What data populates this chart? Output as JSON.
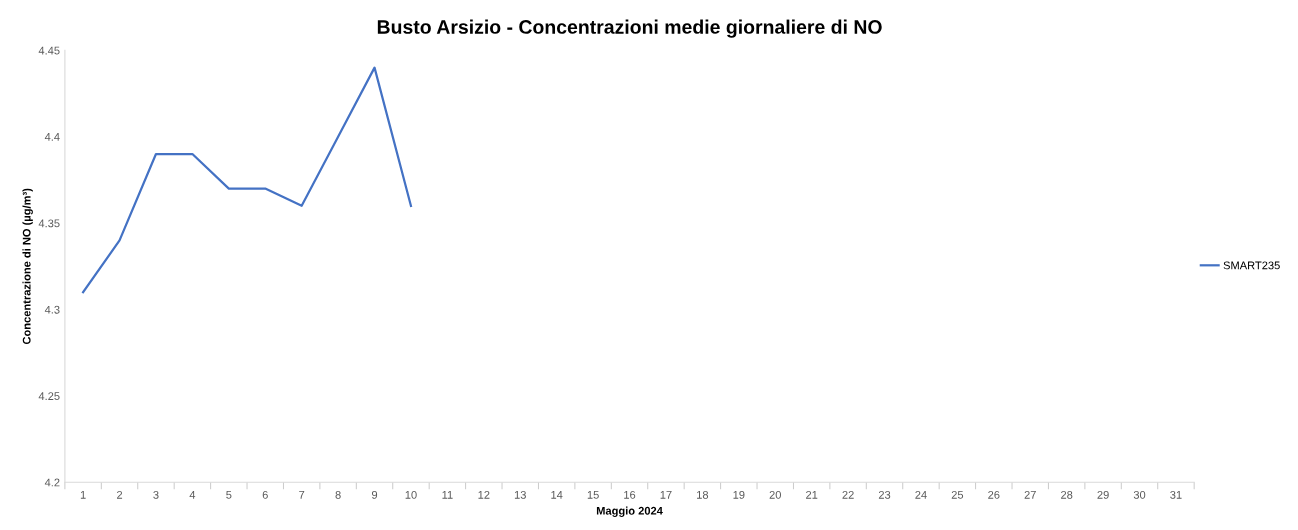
{
  "chart_data": {
    "type": "line",
    "title": "Busto Arsizio - Concentrazioni medie giornaliere di NO",
    "xlabel": "Maggio 2024",
    "ylabel": "Concentrazione di NO (µg/m³)",
    "categories": [
      "1",
      "2",
      "3",
      "4",
      "5",
      "6",
      "7",
      "8",
      "9",
      "10",
      "11",
      "12",
      "13",
      "14",
      "15",
      "16",
      "17",
      "18",
      "19",
      "20",
      "21",
      "22",
      "23",
      "24",
      "25",
      "26",
      "27",
      "28",
      "29",
      "30",
      "31"
    ],
    "series": [
      {
        "name": "SMART235",
        "color": "#4472c4",
        "values": [
          4.31,
          4.34,
          4.39,
          4.39,
          4.37,
          4.37,
          4.36,
          4.4,
          4.44,
          4.36,
          null,
          null,
          null,
          null,
          null,
          null,
          null,
          null,
          null,
          null,
          null,
          null,
          null,
          null,
          null,
          null,
          null,
          null,
          null,
          null,
          null
        ]
      }
    ],
    "ylim": [
      4.2,
      4.45
    ],
    "yticks": [
      4.2,
      4.25,
      4.3,
      4.35,
      4.4,
      4.45
    ],
    "grid": false,
    "legend": "right",
    "marker": "none",
    "line_style": "solid"
  }
}
